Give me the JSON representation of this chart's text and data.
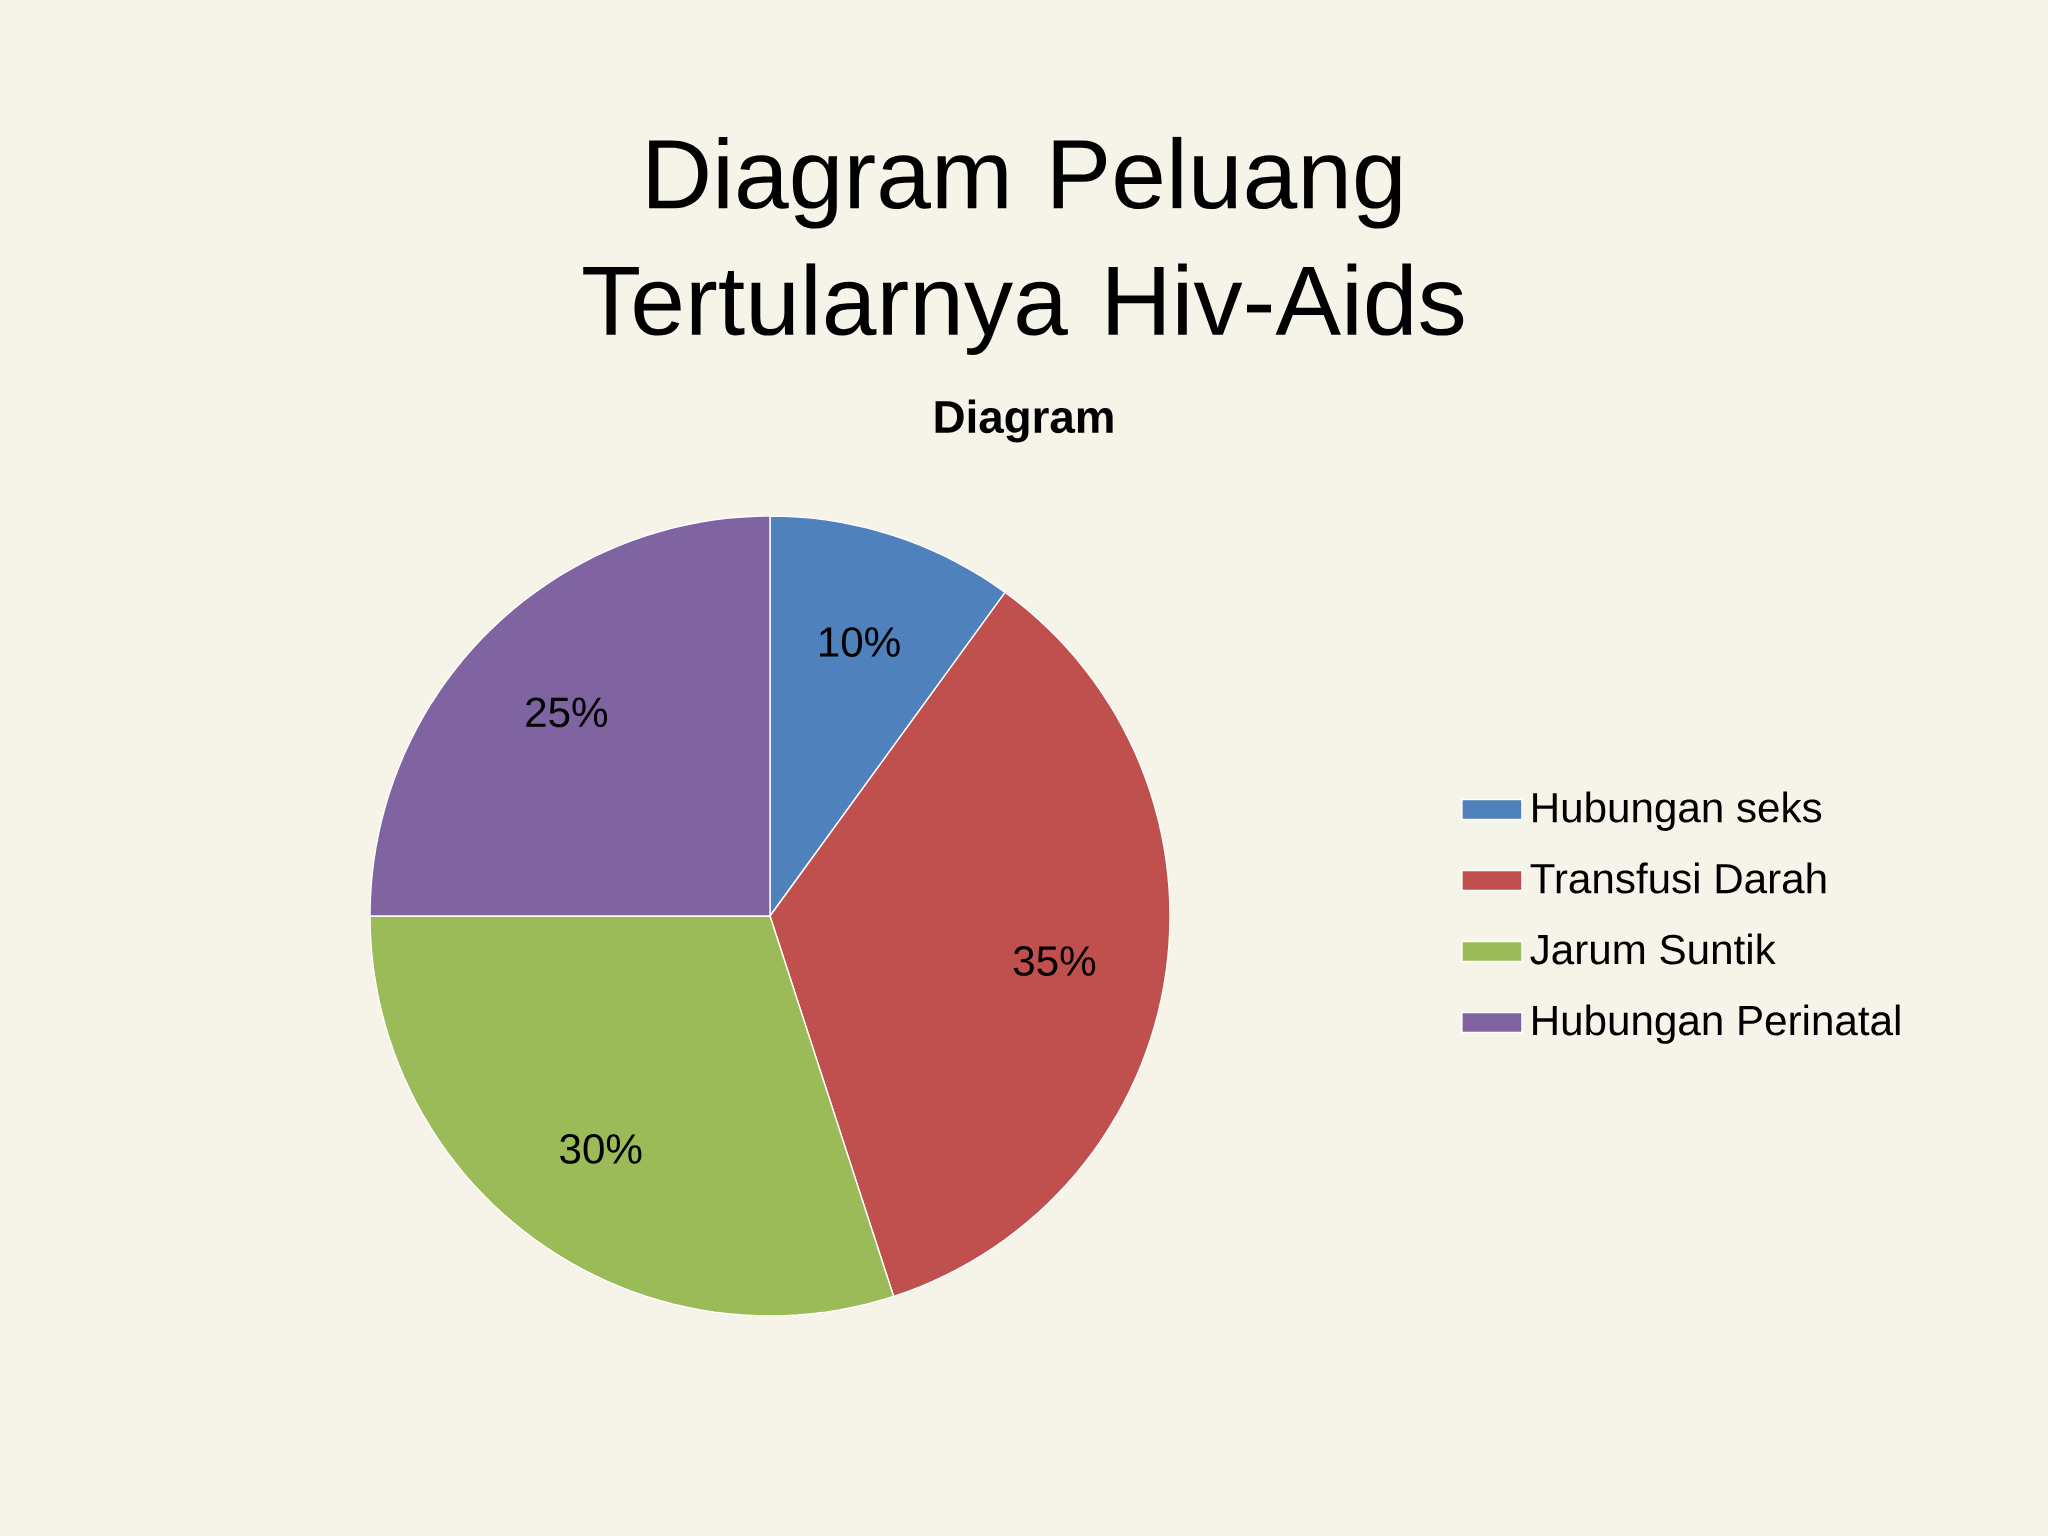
{
  "chart_data": {
    "type": "pie",
    "title": "Diagram Peluang Tertularnya Hiv-Aids",
    "subtitle": "Diagram",
    "categories": [
      "Hubungan seks",
      "Transfusi Darah",
      "Jarum Suntik",
      "Hubungan Perinatal"
    ],
    "values": [
      10,
      35,
      30,
      25
    ],
    "colors": [
      "#4f81bd",
      "#c0504d",
      "#9bbb59",
      "#8064a2"
    ],
    "value_labels": [
      "10%",
      "35%",
      "30%",
      "25%"
    ],
    "legend": "right"
  }
}
